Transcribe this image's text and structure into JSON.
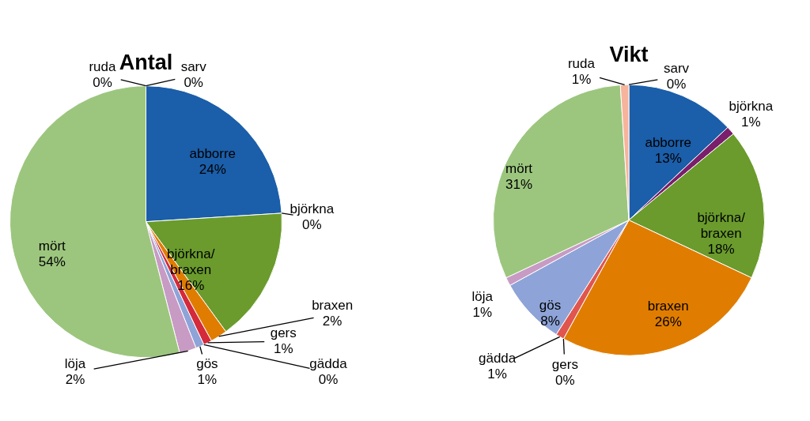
{
  "chart_data": [
    {
      "type": "pie",
      "title": "Antal",
      "categories": [
        "abborre",
        "björkna",
        "björkna/\nbraxen",
        "braxen",
        "gers",
        "gädda",
        "gös",
        "löja",
        "mört",
        "ruda",
        "sarv"
      ],
      "values": [
        24,
        0,
        16,
        2,
        1,
        0,
        1,
        2,
        54,
        0,
        0
      ],
      "value_labels": [
        "24%",
        "0%",
        "16%",
        "2%",
        "1%",
        "0%",
        "1%",
        "2%",
        "54%",
        "0%",
        "0%"
      ],
      "colors": [
        "#1b5ea9",
        "#7a1f6b",
        "#6a9b2c",
        "#e07d00",
        "#d42a3a",
        "#e0564e",
        "#8ea4d8",
        "#c79bc4",
        "#9cc67e",
        "#f6b49c",
        "#d6d6d6"
      ],
      "data_labels": true
    },
    {
      "type": "pie",
      "title": "Vikt",
      "categories": [
        "abborre",
        "björkna",
        "björkna/\nbraxen",
        "braxen",
        "gers",
        "gädda",
        "gös",
        "löja",
        "mört",
        "ruda",
        "sarv"
      ],
      "values": [
        13,
        1,
        18,
        26,
        0,
        1,
        8,
        1,
        31,
        1,
        0
      ],
      "value_labels": [
        "13%",
        "1%",
        "18%",
        "26%",
        "0%",
        "1%",
        "8%",
        "1%",
        "31%",
        "1%",
        "0%"
      ],
      "colors": [
        "#1b5ea9",
        "#7a1f6b",
        "#6a9b2c",
        "#e07d00",
        "#d42a3a",
        "#e0564e",
        "#8ea4d8",
        "#c79bc4",
        "#9cc67e",
        "#f6b49c",
        "#d6d6d6"
      ],
      "data_labels": true
    }
  ]
}
